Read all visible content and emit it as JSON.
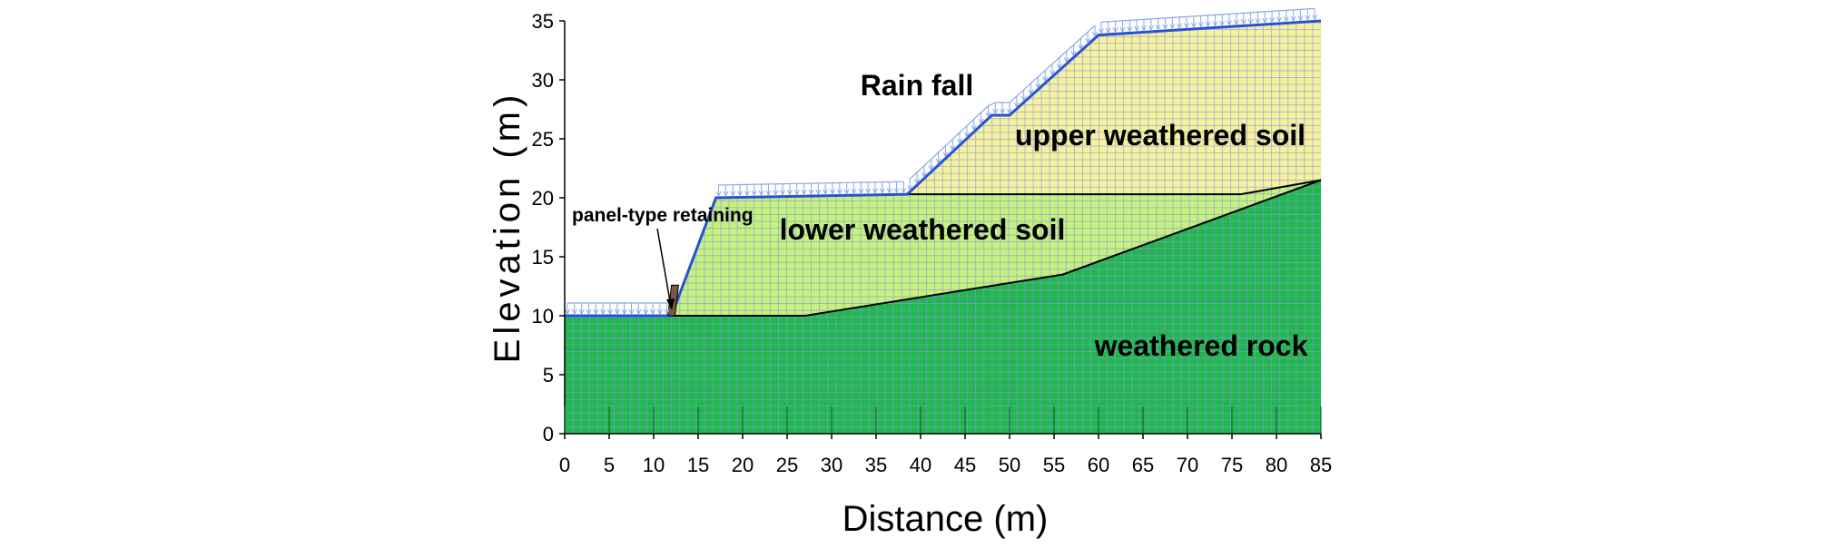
{
  "axes": {
    "xlabel": "Distance (m)",
    "ylabel": "Elevation (m)",
    "xlim": [
      0,
      85
    ],
    "ylim": [
      0,
      35
    ],
    "xticks": [
      0,
      5,
      10,
      15,
      20,
      25,
      30,
      35,
      40,
      45,
      50,
      55,
      60,
      65,
      70,
      75,
      80,
      85
    ],
    "yticks": [
      0,
      5,
      10,
      15,
      20,
      25,
      30,
      35
    ]
  },
  "labels": {
    "rainfall": "Rain fall",
    "upper": "upper weathered soil",
    "lower": "lower weathered soil",
    "rock": "weathered rock",
    "retaining": "panel-type retaining"
  },
  "colors": {
    "rock": "#1fb84a",
    "lower": "#c4f27a",
    "upper": "#f4f29a",
    "mesh": "#8f93ee",
    "surface": "#2850d8",
    "rain": "#8aa6ea"
  },
  "geometry_data": {
    "surface": [
      [
        0,
        10
      ],
      [
        12,
        10
      ],
      [
        17,
        20
      ],
      [
        38.5,
        20.3
      ],
      [
        48,
        27
      ],
      [
        50,
        27
      ],
      [
        60,
        33.8
      ],
      [
        85,
        35
      ]
    ],
    "upper_bottom": [
      [
        38.5,
        20.3
      ],
      [
        76,
        20.3
      ],
      [
        85,
        21.5
      ]
    ],
    "rock_top": [
      [
        0,
        10
      ],
      [
        27,
        10
      ],
      [
        56,
        13.5
      ],
      [
        85,
        21.5
      ]
    ],
    "retaining_wall": [
      [
        11.6,
        10
      ],
      [
        12.4,
        10
      ],
      [
        12.8,
        12.6
      ],
      [
        12.0,
        12.6
      ]
    ],
    "rain_segments": [
      [
        0,
        12
      ],
      [
        17,
        38.5
      ],
      [
        38.5,
        60
      ],
      [
        60,
        85
      ]
    ]
  }
}
